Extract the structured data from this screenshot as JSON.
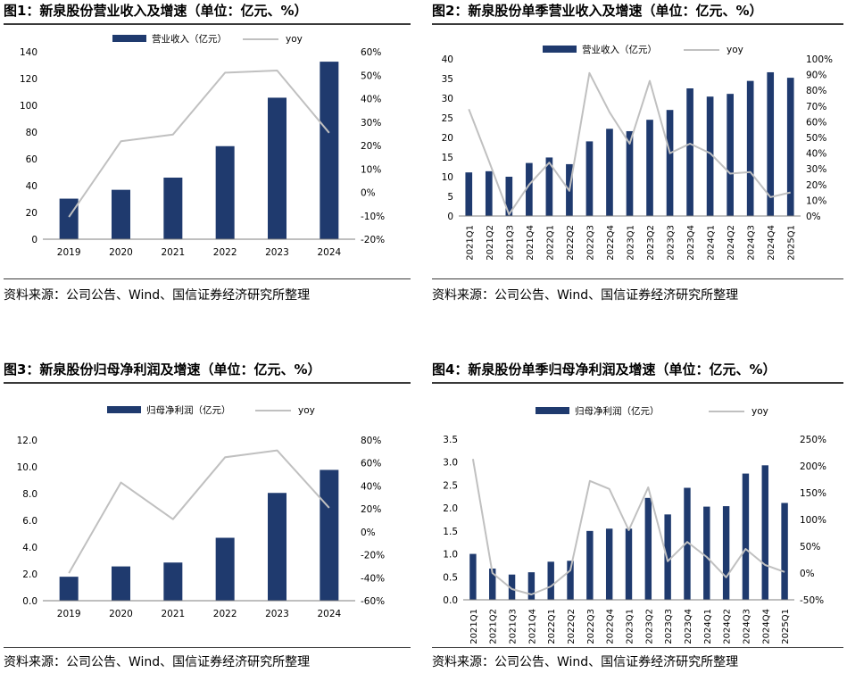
{
  "colors": {
    "bar": "#1f3a6e",
    "line": "#c0c0c0",
    "axis": "#7f7f7f",
    "rule": "#3a3a3a"
  },
  "source_text": "资料来源：公司公告、Wind、国信证券经济研究所整理",
  "panels": [
    {
      "title": "图1：新泉股份营业收入及增速（单位：亿元、%）",
      "chart_data": {
        "type": "bar",
        "categories": [
          "2019",
          "2020",
          "2021",
          "2022",
          "2023",
          "2024"
        ],
        "series": [
          {
            "name": "营业收入（亿元）",
            "type": "bar",
            "axis": "left",
            "values": [
              30.3,
              36.9,
              46.0,
              69.5,
              105.7,
              132.6
            ]
          },
          {
            "name": "yoy",
            "type": "line",
            "axis": "right",
            "values": [
              -10.5,
              21.8,
              24.7,
              51.1,
              52.0,
              25.4
            ]
          }
        ],
        "yleft": {
          "ticks": [
            "0",
            "20",
            "40",
            "60",
            "80",
            "100",
            "120",
            "140"
          ],
          "ylim": [
            0,
            140
          ]
        },
        "yright": {
          "ticks": [
            "-20%",
            "-10%",
            "0%",
            "10%",
            "20%",
            "30%",
            "40%",
            "50%",
            "60%"
          ],
          "ylim": [
            -20,
            60
          ]
        },
        "rotated_x": false,
        "legend_placement": "top"
      }
    },
    {
      "title": "图2：新泉股份单季营业收入及增速（单位：亿元、%）",
      "chart_data": {
        "type": "bar",
        "categories": [
          "2021Q1",
          "2021Q2",
          "2021Q3",
          "2021Q4",
          "2022Q1",
          "2022Q2",
          "2022Q3",
          "2022Q4",
          "2023Q1",
          "2023Q2",
          "2023Q3",
          "2023Q4",
          "2024Q1",
          "2024Q2",
          "2024Q3",
          "2024Q4",
          "2025Q1"
        ],
        "series": [
          {
            "name": "营业收入（亿元）",
            "type": "bar",
            "axis": "left",
            "values": [
              11.1,
              11.4,
              10.0,
              13.5,
              14.9,
              13.2,
              19.0,
              22.2,
              21.6,
              24.5,
              27.0,
              32.5,
              30.4,
              31.1,
              34.4,
              36.6,
              35.2
            ]
          },
          {
            "name": "yoy",
            "type": "line",
            "axis": "right",
            "values": [
              68,
              35,
              1,
              20,
              34,
              16,
              91,
              66,
              46,
              86,
              40,
              46,
              40,
              27,
              28,
              12,
              15
            ]
          }
        ],
        "yleft": {
          "ticks": [
            "0",
            "5",
            "10",
            "15",
            "20",
            "25",
            "30",
            "35",
            "40"
          ],
          "ylim": [
            0,
            40
          ]
        },
        "yright": {
          "ticks": [
            "0%",
            "10%",
            "20%",
            "30%",
            "40%",
            "50%",
            "60%",
            "70%",
            "80%",
            "90%",
            "100%"
          ],
          "ylim": [
            0,
            100
          ]
        },
        "rotated_x": true,
        "legend_placement": "top"
      }
    },
    {
      "title": "图3：新泉股份归母净利润及增速（单位：亿元、%）",
      "chart_data": {
        "type": "bar",
        "categories": [
          "2019",
          "2020",
          "2021",
          "2022",
          "2023",
          "2024"
        ],
        "series": [
          {
            "name": "归母净利润（亿元）",
            "type": "bar",
            "axis": "left",
            "values": [
              1.79,
              2.56,
              2.85,
              4.7,
              8.05,
              9.77
            ]
          },
          {
            "name": "yoy",
            "type": "line",
            "axis": "right",
            "values": [
              -36,
              43,
              11,
              65,
              71,
              21
            ]
          }
        ],
        "yleft": {
          "ticks": [
            "0.0",
            "2.0",
            "4.0",
            "6.0",
            "8.0",
            "10.0",
            "12.0"
          ],
          "ylim": [
            0,
            12
          ]
        },
        "yright": {
          "ticks": [
            "-60%",
            "-40%",
            "-20%",
            "0%",
            "20%",
            "40%",
            "60%",
            "80%"
          ],
          "ylim": [
            -60,
            80
          ]
        },
        "rotated_x": false,
        "legend_placement": "top"
      }
    },
    {
      "title": "图4：新泉股份单季归母净利润及增速（单位：亿元、%）",
      "chart_data": {
        "type": "bar",
        "categories": [
          "2021Q1",
          "2021Q2",
          "2021Q3",
          "2021Q4",
          "2022Q1",
          "2022Q2",
          "2022Q3",
          "2022Q4",
          "2023Q1",
          "2023Q2",
          "2023Q3",
          "2023Q4",
          "2024Q1",
          "2024Q2",
          "2024Q3",
          "2024Q4",
          "2025Q1"
        ],
        "series": [
          {
            "name": "归母净利润（亿元）",
            "type": "bar",
            "axis": "left",
            "values": [
              1.0,
              0.68,
              0.55,
              0.6,
              0.83,
              0.85,
              1.5,
              1.55,
              1.55,
              2.22,
              1.86,
              2.44,
              2.03,
              2.04,
              2.75,
              2.93,
              2.11
            ]
          },
          {
            "name": "yoy",
            "type": "line",
            "axis": "right",
            "values": [
              213,
              0,
              -30,
              -40,
              -25,
              5,
              172,
              157,
              80,
              160,
              22,
              58,
              30,
              -8,
              45,
              15,
              2
            ]
          }
        ],
        "yleft": {
          "ticks": [
            "0.0",
            "0.5",
            "1.0",
            "1.5",
            "2.0",
            "2.5",
            "3.0",
            "3.5"
          ],
          "ylim": [
            0,
            3.5
          ]
        },
        "yright": {
          "ticks": [
            "-50%",
            "0%",
            "50%",
            "100%",
            "150%",
            "200%",
            "250%"
          ],
          "ylim": [
            -50,
            250
          ]
        },
        "rotated_x": true,
        "legend_placement": "top"
      }
    }
  ]
}
